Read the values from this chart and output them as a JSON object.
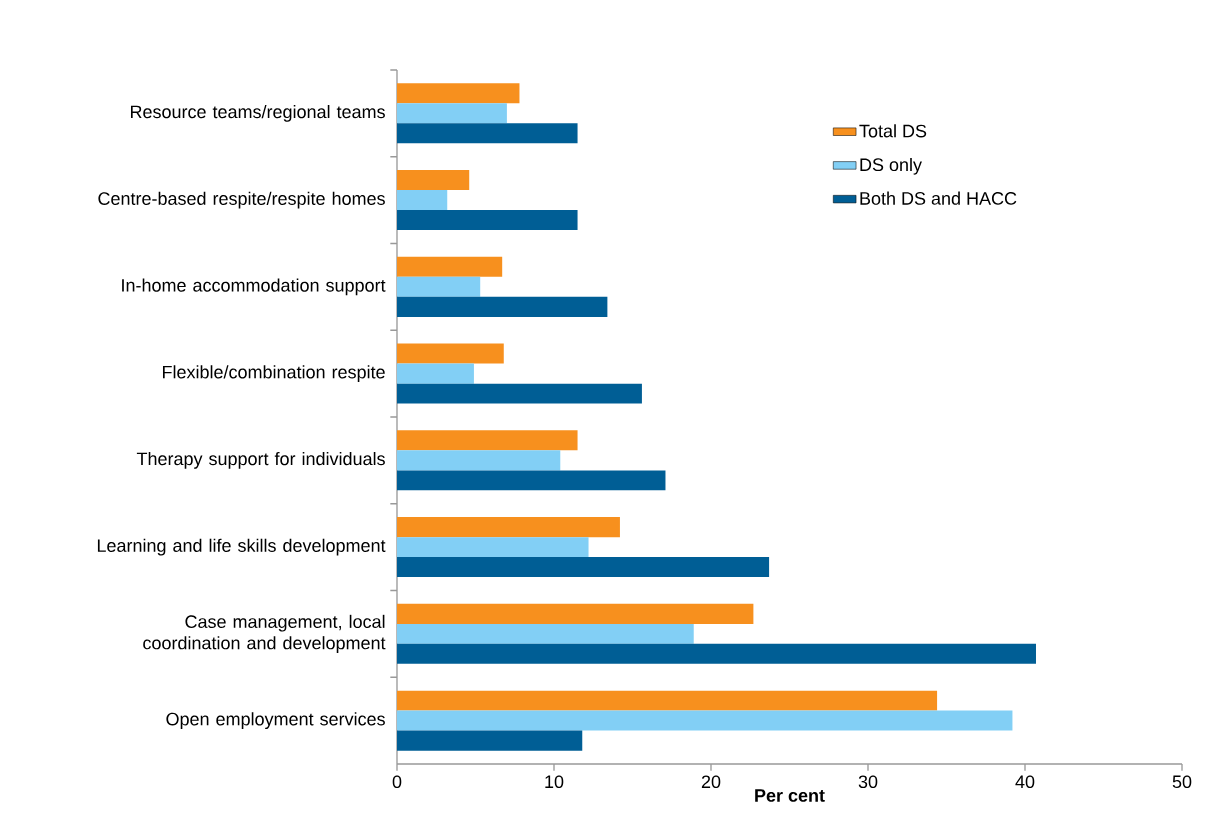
{
  "chart_data": {
    "type": "bar",
    "orientation": "horizontal",
    "xlabel": "Per cent",
    "categories": [
      "Resource teams/regional teams",
      "Centre-based respite/respite homes",
      "In-home accommodation support",
      "Flexible/combination respite",
      "Therapy support for individuals",
      "Learning and life skills development",
      "Case management, local coordination and development",
      "Open employment services"
    ],
    "series": [
      {
        "name": "Total DS",
        "color": "#f7901e",
        "values": [
          7.8,
          4.6,
          6.7,
          6.8,
          11.5,
          14.2,
          22.7,
          34.4
        ]
      },
      {
        "name": "DS only",
        "color": "#82cff5",
        "values": [
          7.0,
          3.2,
          5.3,
          4.9,
          10.4,
          12.2,
          18.9,
          39.2
        ]
      },
      {
        "name": "Both DS and HACC",
        "color": "#005e95",
        "values": [
          11.5,
          11.5,
          13.4,
          15.6,
          17.1,
          23.7,
          40.7,
          11.8
        ]
      }
    ],
    "xlim": [
      0,
      50
    ],
    "xticks": [
      0,
      10,
      20,
      30,
      40,
      50
    ],
    "legend": "top right"
  }
}
